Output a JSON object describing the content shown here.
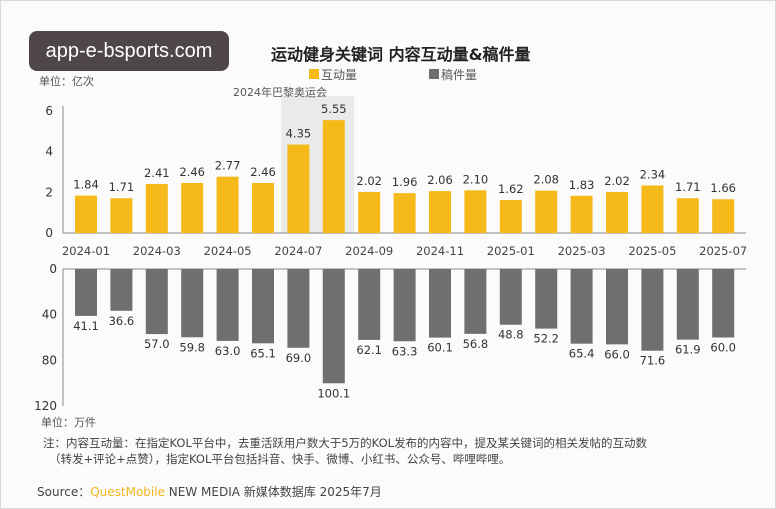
{
  "watermark": "app-e-bsports.com",
  "chart_data": [
    {
      "type": "bar",
      "title": "运动健身关键词 内容互动量&稿件量",
      "unit_label": "单位：亿次",
      "annotation": "2024年巴黎奥运会",
      "legend": [
        {
          "name": "互动量",
          "color": "#f5b919"
        },
        {
          "name": "稿件量",
          "color": "#6e6e6e"
        }
      ],
      "categories": [
        "2024-01",
        "2024-02",
        "2024-03",
        "2024-04",
        "2024-05",
        "2024-06",
        "2024-07",
        "2024-08",
        "2024-09",
        "2024-10",
        "2024-11",
        "2024-12",
        "2025-01",
        "2025-02",
        "2025-03",
        "2025-04",
        "2025-05",
        "2025-06",
        "2025-07"
      ],
      "tick_labels": [
        "2024-01",
        "2024-03",
        "2024-05",
        "2024-07",
        "2024-09",
        "2024-11",
        "2025-01",
        "2025-03",
        "2025-05",
        "2025-07"
      ],
      "series": [
        {
          "name": "互动量",
          "values": [
            1.84,
            1.71,
            2.41,
            2.46,
            2.77,
            2.46,
            4.35,
            5.55,
            2.02,
            1.96,
            2.06,
            2.1,
            1.62,
            2.08,
            1.83,
            2.02,
            2.34,
            1.71,
            1.66
          ]
        }
      ],
      "yticks": [
        0,
        2,
        4,
        6
      ],
      "ylim": [
        0,
        6
      ]
    },
    {
      "type": "bar",
      "unit_label": "单位：万件",
      "categories": [
        "2024-01",
        "2024-02",
        "2024-03",
        "2024-04",
        "2024-05",
        "2024-06",
        "2024-07",
        "2024-08",
        "2024-09",
        "2024-10",
        "2024-11",
        "2024-12",
        "2025-01",
        "2025-02",
        "2025-03",
        "2025-04",
        "2025-05",
        "2025-06",
        "2025-07"
      ],
      "series": [
        {
          "name": "稿件量",
          "values": [
            41.1,
            36.6,
            57.0,
            59.8,
            63.0,
            65.1,
            69.0,
            100.1,
            62.1,
            63.3,
            60.1,
            56.8,
            48.8,
            52.2,
            65.4,
            66.0,
            71.6,
            61.9,
            60.0
          ]
        }
      ],
      "yticks": [
        0,
        40,
        80,
        120
      ],
      "ylim": [
        0,
        120
      ],
      "inverted": true
    }
  ],
  "note_line1": "注：内容互动量：在指定KOL平台中，去重活跃用户数大于5万的KOL发布的内容中，提及某关键词的相关发帖的互动数",
  "note_line2": "（转发+评论+点赞），指定KOL平台包括抖音、快手、微博、小红书、公众号、哔哩哔哩。",
  "source_prefix": "Source：",
  "source_brand": "QuestMobile",
  "source_rest": " NEW MEDIA 新媒体数据库 2025年7月"
}
